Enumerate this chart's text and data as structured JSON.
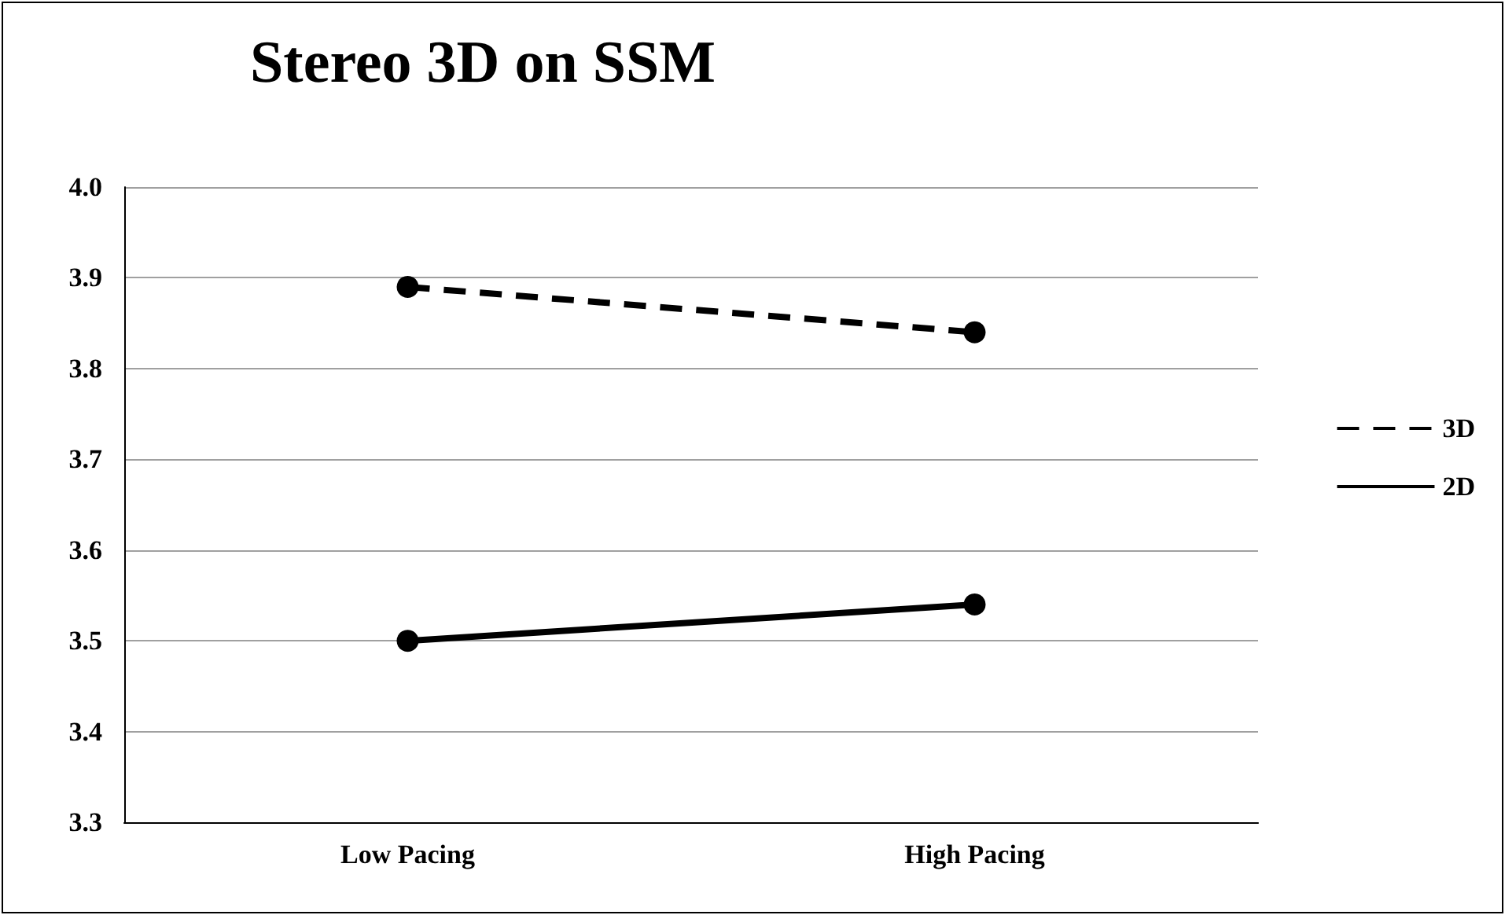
{
  "chart_data": {
    "type": "line",
    "title": "Stereo 3D on SSM",
    "categories": [
      "Low Pacing",
      "High Pacing"
    ],
    "series": [
      {
        "name": "3D",
        "color": "#000000",
        "values": [
          3.89,
          3.84
        ],
        "line_style": "dashed"
      },
      {
        "name": "2D",
        "color": "#000000",
        "values": [
          3.5,
          3.54
        ],
        "line_style": "solid"
      }
    ],
    "ylim": [
      3.3,
      4.0
    ],
    "yticks": [
      3.3,
      3.4,
      3.5,
      3.6,
      3.7,
      3.8,
      3.9,
      {
        "value": 4,
        "label": "4.0"
      }
    ],
    "grid": "y",
    "legend": "right",
    "marker": "circle"
  }
}
